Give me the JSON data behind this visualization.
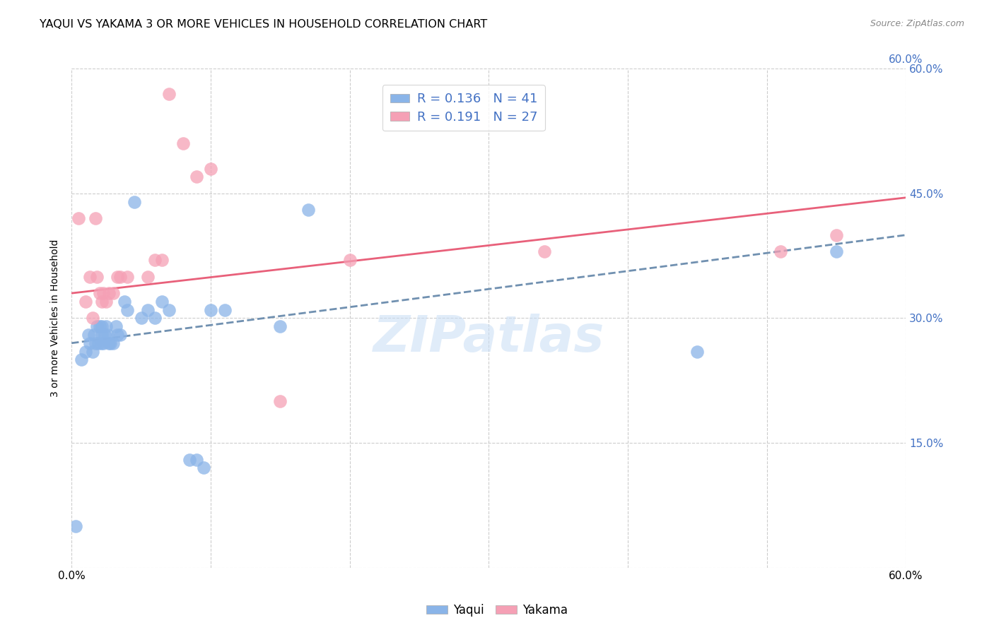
{
  "title": "YAQUI VS YAKAMA 3 OR MORE VEHICLES IN HOUSEHOLD CORRELATION CHART",
  "source": "Source: ZipAtlas.com",
  "ylabel": "3 or more Vehicles in Household",
  "xlim": [
    0.0,
    0.6
  ],
  "ylim": [
    0.0,
    0.6
  ],
  "legend_labels": [
    "Yaqui",
    "Yakama"
  ],
  "R_yaqui": 0.136,
  "N_yaqui": 41,
  "R_yakama": 0.191,
  "N_yakama": 27,
  "yaqui_color": "#8ab4e8",
  "yakama_color": "#f5a0b5",
  "yaqui_line_color": "#7090b0",
  "yakama_line_color": "#e8607a",
  "watermark": "ZIPatlas",
  "background_color": "#ffffff",
  "grid_color": "#cccccc",
  "yaqui_x": [
    0.003,
    0.007,
    0.01,
    0.012,
    0.013,
    0.015,
    0.016,
    0.017,
    0.018,
    0.019,
    0.02,
    0.021,
    0.022,
    0.022,
    0.023,
    0.024,
    0.025,
    0.026,
    0.027,
    0.028,
    0.03,
    0.032,
    0.033,
    0.035,
    0.038,
    0.04,
    0.045,
    0.05,
    0.055,
    0.06,
    0.065,
    0.07,
    0.085,
    0.09,
    0.095,
    0.1,
    0.11,
    0.15,
    0.17,
    0.45,
    0.55
  ],
  "yaqui_y": [
    0.05,
    0.25,
    0.26,
    0.28,
    0.27,
    0.26,
    0.28,
    0.27,
    0.29,
    0.27,
    0.29,
    0.27,
    0.29,
    0.28,
    0.27,
    0.28,
    0.29,
    0.28,
    0.27,
    0.27,
    0.27,
    0.29,
    0.28,
    0.28,
    0.32,
    0.31,
    0.44,
    0.3,
    0.31,
    0.3,
    0.32,
    0.31,
    0.13,
    0.13,
    0.12,
    0.31,
    0.31,
    0.29,
    0.43,
    0.26,
    0.38
  ],
  "yakama_x": [
    0.005,
    0.01,
    0.013,
    0.015,
    0.017,
    0.018,
    0.02,
    0.022,
    0.023,
    0.025,
    0.027,
    0.03,
    0.033,
    0.035,
    0.04,
    0.055,
    0.06,
    0.065,
    0.07,
    0.08,
    0.09,
    0.1,
    0.15,
    0.2,
    0.34,
    0.51,
    0.55
  ],
  "yakama_y": [
    0.42,
    0.32,
    0.35,
    0.3,
    0.42,
    0.35,
    0.33,
    0.32,
    0.33,
    0.32,
    0.33,
    0.33,
    0.35,
    0.35,
    0.35,
    0.35,
    0.37,
    0.37,
    0.57,
    0.51,
    0.47,
    0.48,
    0.2,
    0.37,
    0.38,
    0.38,
    0.4
  ],
  "yaqui_trend_start_y": 0.27,
  "yaqui_trend_end_y": 0.4,
  "yakama_trend_start_y": 0.33,
  "yakama_trend_end_y": 0.445
}
